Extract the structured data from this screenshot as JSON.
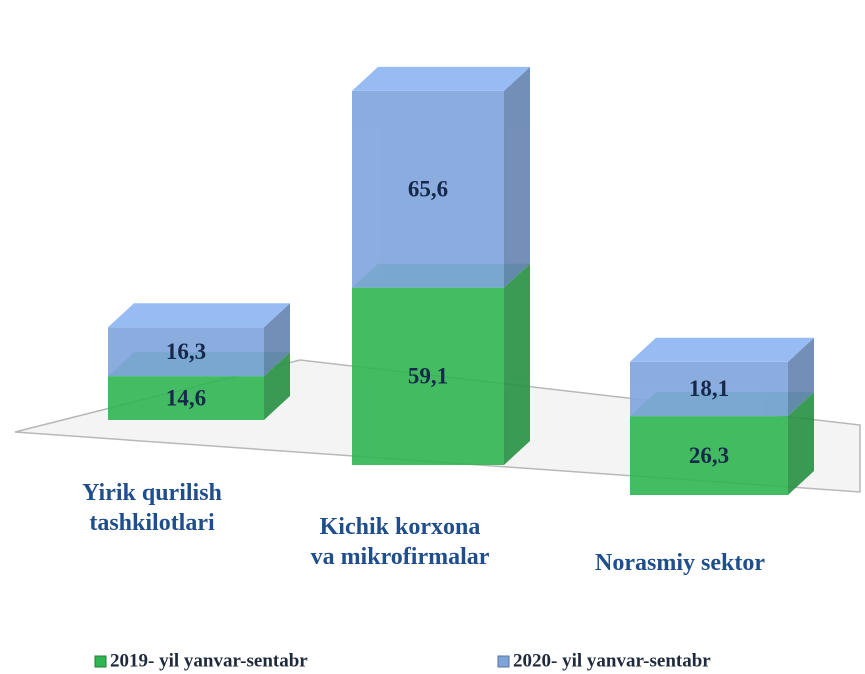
{
  "chart_data": {
    "type": "bar",
    "stacked": true,
    "categories": [
      "Yirik qurilish\ntashkilotlari",
      "Kichik korxona\nva mikrofirmalar",
      "Norasmiy sektor"
    ],
    "series": [
      {
        "name": "2019- yil yanvar-sentabr",
        "color": "#2fb552",
        "values": [
          14.6,
          59.1,
          26.3
        ],
        "value_labels": [
          "14,6",
          "59,1",
          "26,3"
        ]
      },
      {
        "name": "2020- yil yanvar-sentabr",
        "color": "#7fa4dc",
        "values": [
          16.3,
          65.6,
          18.1
        ],
        "value_labels": [
          "16,3",
          "65,6",
          "18,1"
        ]
      }
    ]
  }
}
